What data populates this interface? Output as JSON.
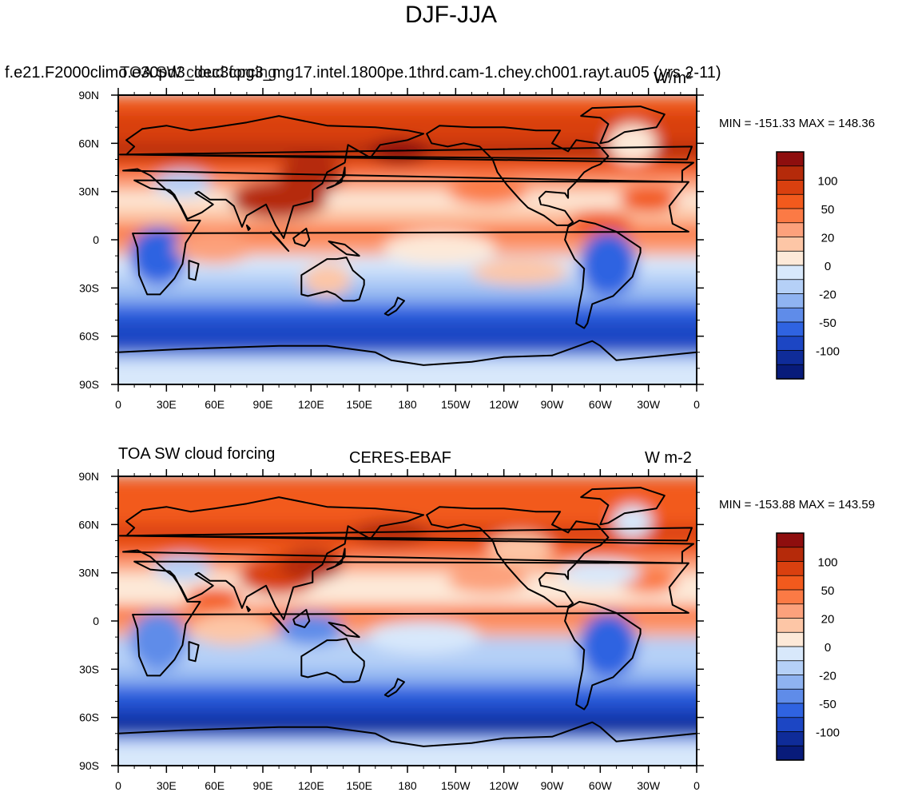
{
  "figure": {
    "title": "DJF-JJA"
  },
  "chart_data": [
    {
      "type": "heatmap",
      "left_title": "f.e21.F2000climo.e30pd3_dec3cpg3_mg17.intel.1800pe.1thrd.cam-1.chey.ch001.rayt.au05 (yrs 2-11)",
      "center_title": "TOA SW cloud forcing",
      "units": "W/m²",
      "stats": "MIN = -151.33 MAX = 148.36",
      "min": -151.33,
      "max": 148.36,
      "x_ticks": [
        "0",
        "30E",
        "60E",
        "90E",
        "120E",
        "150E",
        "180",
        "150W",
        "120W",
        "90W",
        "60W",
        "30W",
        "0"
      ],
      "y_ticks": [
        "90N",
        "60N",
        "30N",
        "0",
        "30S",
        "60S",
        "90S"
      ],
      "xlim": [
        0,
        360
      ],
      "ylim": [
        -90,
        90
      ],
      "colorbar_labels": [
        "100",
        "50",
        "20",
        "0",
        "-20",
        "-50",
        "-100"
      ]
    },
    {
      "type": "heatmap",
      "left_title": "TOA SW cloud forcing",
      "center_title": "CERES-EBAF",
      "units": "W m-2",
      "stats": "MIN = -153.88 MAX = 143.59",
      "min": -153.88,
      "max": 143.59,
      "x_ticks": [
        "0",
        "30E",
        "60E",
        "90E",
        "120E",
        "150E",
        "180",
        "150W",
        "120W",
        "90W",
        "60W",
        "30W",
        "0"
      ],
      "y_ticks": [
        "90N",
        "60N",
        "30N",
        "0",
        "30S",
        "60S",
        "90S"
      ],
      "xlim": [
        0,
        360
      ],
      "ylim": [
        -90,
        90
      ],
      "colorbar_labels": [
        "100",
        "50",
        "20",
        "0",
        "-20",
        "-50",
        "-100"
      ]
    }
  ],
  "colorbar_colors": [
    "#8e0e0e",
    "#b52a0a",
    "#d9400f",
    "#f25a1d",
    "#fb7a45",
    "#fca17c",
    "#fdc6a6",
    "#fde9d8",
    "#d8e8fb",
    "#b5d0f7",
    "#8fb3f1",
    "#5f8ce9",
    "#2f63e1",
    "#1c46c4",
    "#0f2c99",
    "#081b7a"
  ]
}
